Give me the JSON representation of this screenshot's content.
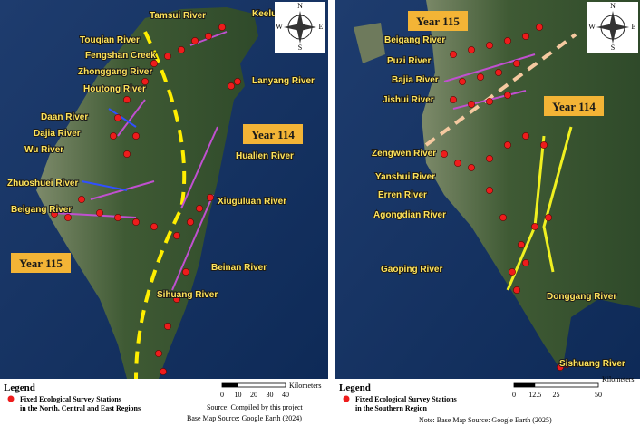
{
  "left": {
    "labels": [
      "Tamsui River",
      "Keelung River",
      "Touqian River",
      "Fengshan Creek",
      "Zhonggang River",
      "Houtong River",
      "Lanyang River",
      "Daan River",
      "Dajia River",
      "Wu River",
      "Hualien River",
      "Zhuoshuei River",
      "Beigang River",
      "Xiuguluan River",
      "Beinan River",
      "Sihuang River"
    ],
    "year_north": "Year 114",
    "year_south": "Year 115",
    "compass": {
      "n": "N",
      "s": "S",
      "e": "E",
      "w": "W"
    },
    "legend": {
      "title": "Legend",
      "station": "Fixed Ecological Survey Stations",
      "station2": "in the North, Central and East Regions"
    },
    "scale": {
      "unit": "Kilometers",
      "ticks": [
        "0",
        "10",
        "20",
        "30",
        "40"
      ]
    },
    "source": [
      "Source: Compiled by this project",
      "Base Map Source: Google Earth (2024)"
    ]
  },
  "right": {
    "labels": [
      "Beigang River",
      "Puzi River",
      "Bajia River",
      "Jishui River",
      "Zengwen River",
      "Yanshui River",
      "Erren River",
      "Agongdian River",
      "Gaoping River",
      "Donggang River",
      "Sishuang River"
    ],
    "year_north": "Year 115",
    "year_south": "Year 114",
    "compass": {
      "n": "N",
      "s": "S",
      "e": "E",
      "w": "W"
    },
    "legend": {
      "title": "Legend",
      "station": "Fixed Ecological Survey Stations",
      "station2": "in the Southern Region"
    },
    "scale": {
      "unit": "Kilometers",
      "ticks": [
        "0",
        "12.5",
        "25",
        "50"
      ]
    },
    "note": "Note: Base Map Source: Google Earth (2025)"
  }
}
